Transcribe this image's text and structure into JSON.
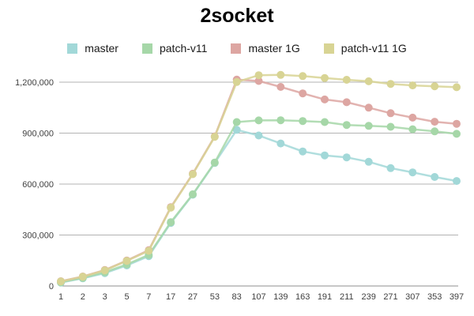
{
  "chart": {
    "title": "2socket"
  },
  "chart_data": {
    "type": "line",
    "title": "2socket",
    "xlabel": "",
    "ylabel": "",
    "grid": true,
    "legend_position": "top",
    "categories": [
      "1",
      "2",
      "3",
      "5",
      "7",
      "17",
      "27",
      "53",
      "83",
      "107",
      "139",
      "163",
      "191",
      "211",
      "239",
      "271",
      "307",
      "353",
      "397"
    ],
    "series": [
      {
        "name": "master",
        "color": "#a2d8d8",
        "values": [
          20000,
          45000,
          76000,
          121000,
          176000,
          371000,
          537000,
          724000,
          919000,
          886000,
          839000,
          792000,
          769000,
          757000,
          731000,
          694000,
          669000,
          642000,
          618000
        ]
      },
      {
        "name": "patch-v11",
        "color": "#a6d7a8",
        "values": [
          22000,
          48000,
          81000,
          127000,
          183000,
          376000,
          540000,
          727000,
          965000,
          975000,
          976000,
          971000,
          965000,
          948000,
          943000,
          937000,
          923000,
          910000,
          896000
        ]
      },
      {
        "name": "master 1G",
        "color": "#dda6a2",
        "values": [
          28000,
          56000,
          94000,
          150000,
          211000,
          464000,
          661000,
          881000,
          1215000,
          1207000,
          1172000,
          1134000,
          1098000,
          1082000,
          1050000,
          1017000,
          991000,
          967000,
          955000
        ]
      },
      {
        "name": "patch-v11 1G",
        "color": "#d8d494",
        "values": [
          27000,
          55000,
          92000,
          148000,
          207000,
          461000,
          658000,
          878000,
          1201000,
          1241000,
          1243000,
          1236000,
          1224000,
          1214000,
          1205000,
          1190000,
          1181000,
          1176000,
          1170000
        ]
      }
    ],
    "ylim": [
      0,
      1290000
    ],
    "yticks": [
      {
        "value": 0,
        "label": "0"
      },
      {
        "value": 300000,
        "label": "300,000"
      },
      {
        "value": 600000,
        "label": "600,000"
      },
      {
        "value": 900000,
        "label": "900,000"
      },
      {
        "value": 1200000,
        "label": "1,200,000"
      }
    ],
    "colors": {
      "gridline": "#b3b3b3",
      "baseline": "#8f8f8f",
      "title": "#000000",
      "tick_text": "#404040"
    }
  }
}
